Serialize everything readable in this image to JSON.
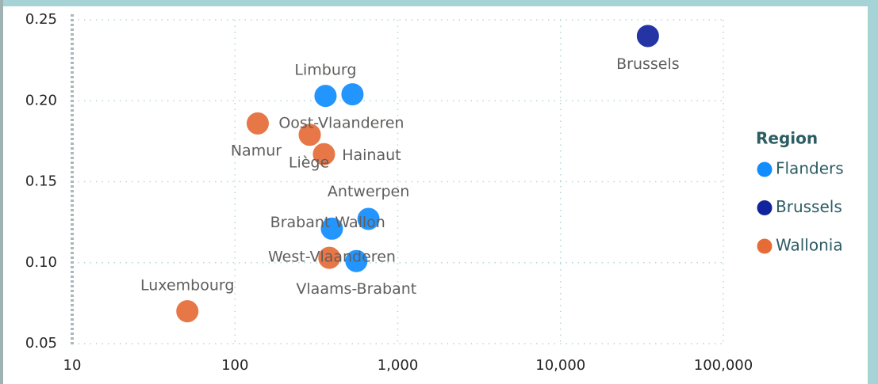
{
  "chart_data": {
    "type": "scatter",
    "xscale": "log",
    "xlim": [
      10,
      100000
    ],
    "xticks": [
      10,
      100,
      {
        "value": 1000,
        "label": "1,000"
      },
      {
        "value": 10000,
        "label": "10,000"
      },
      {
        "value": 100000,
        "label": "100,000"
      }
    ],
    "ylim": [
      0.05,
      0.25
    ],
    "yticks": [
      {
        "value": 0.05,
        "label": "0.05"
      },
      {
        "value": 0.1,
        "label": "0.10"
      },
      0.15,
      {
        "value": 0.2,
        "label": "0.20"
      },
      0.25
    ],
    "grid": true,
    "legend_title": "Region",
    "legend": "right",
    "series": [
      {
        "name": "Flanders",
        "color": "#118dff",
        "labels": [
          "Limburg",
          "Oost-Vlaanderen",
          "Antwerpen",
          "West-Vlaanderen",
          "Vlaams-Brabant"
        ],
        "x": [
          360,
          527,
          661,
          394,
          557
        ],
        "values": [
          0.203,
          0.204,
          0.127,
          0.121,
          0.101
        ]
      },
      {
        "name": "Brussels",
        "color": "#12239e",
        "labels": [
          "Brussels"
        ],
        "x": [
          34400
        ],
        "values": [
          0.24
        ]
      },
      {
        "name": "Wallonia",
        "color": "#e66c37",
        "labels": [
          "Namur",
          "Liège",
          "Hainaut",
          "Brabant Wallon",
          "Luxembourg"
        ],
        "x": [
          138,
          288,
          352,
          380,
          51
        ],
        "values": [
          0.186,
          0.179,
          0.167,
          0.103,
          0.07
        ]
      }
    ]
  }
}
